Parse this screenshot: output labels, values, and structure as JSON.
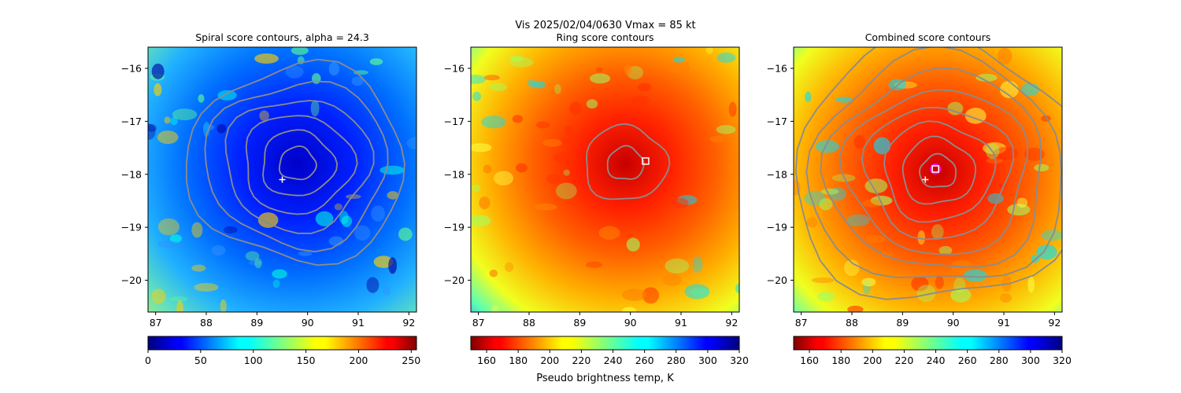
{
  "figure": {
    "suptitle_line": "Vis  2025/02/04/0630    Vmax = 85 kt",
    "colorbar_label": "Pseudo brightness temp, K"
  },
  "colors": {
    "contour": "#8c8c8c",
    "center_marker": "#ffffff",
    "ring_center_marker": "#ffffff",
    "combined_marker_edge": "#ff00ff"
  },
  "chart_data": [
    {
      "type": "heatmap",
      "title": "Spiral score contours, alpha = 24.3",
      "colormap": "jet",
      "xlim": [
        86.85,
        92.15
      ],
      "ylim": [
        -20.6,
        -15.6
      ],
      "xticks": [
        "87",
        "88",
        "89",
        "90",
        "91",
        "92"
      ],
      "yticks": [
        "−16",
        "−17",
        "−18",
        "−19",
        "−20"
      ],
      "colorbar": {
        "range": [
          0,
          255
        ],
        "ticks": [
          "0",
          "50",
          "100",
          "150",
          "200",
          "250"
        ],
        "reversed": false
      },
      "marker_plus": {
        "x": 89.5,
        "y": -18.1
      },
      "contours": {
        "center": [
          89.8,
          -17.8
        ],
        "levels": 6
      }
    },
    {
      "type": "heatmap",
      "title": "Ring score contours",
      "colormap": "jet_r",
      "xlim": [
        86.85,
        92.15
      ],
      "ylim": [
        -20.6,
        -15.6
      ],
      "xticks": [
        "87",
        "88",
        "89",
        "90",
        "91",
        "92"
      ],
      "yticks": [
        "−16",
        "−17",
        "−18",
        "−19",
        "−20"
      ],
      "colorbar": {
        "range": [
          150,
          320
        ],
        "ticks": [
          "160",
          "180",
          "200",
          "220",
          "240",
          "260",
          "280",
          "300",
          "320"
        ],
        "reversed": true
      },
      "marker_square": {
        "x": 90.3,
        "y": -17.75
      },
      "contours": {
        "center": [
          89.9,
          -17.8
        ],
        "levels": 2
      }
    },
    {
      "type": "heatmap",
      "title": "Combined score contours",
      "colormap": "jet_r",
      "xlim": [
        86.85,
        92.15
      ],
      "ylim": [
        -20.6,
        -15.6
      ],
      "xticks": [
        "87",
        "88",
        "89",
        "90",
        "91",
        "92"
      ],
      "yticks": [
        "−16",
        "−17",
        "−18",
        "−19",
        "−20"
      ],
      "colorbar": {
        "range": [
          150,
          320
        ],
        "ticks": [
          "160",
          "180",
          "200",
          "220",
          "240",
          "260",
          "280",
          "300",
          "320"
        ],
        "reversed": true
      },
      "marker_plus": {
        "x": 89.45,
        "y": -18.1
      },
      "marker_square": {
        "x": 89.65,
        "y": -17.9
      },
      "contours": {
        "center": [
          89.7,
          -17.95
        ],
        "levels": 8
      }
    }
  ]
}
